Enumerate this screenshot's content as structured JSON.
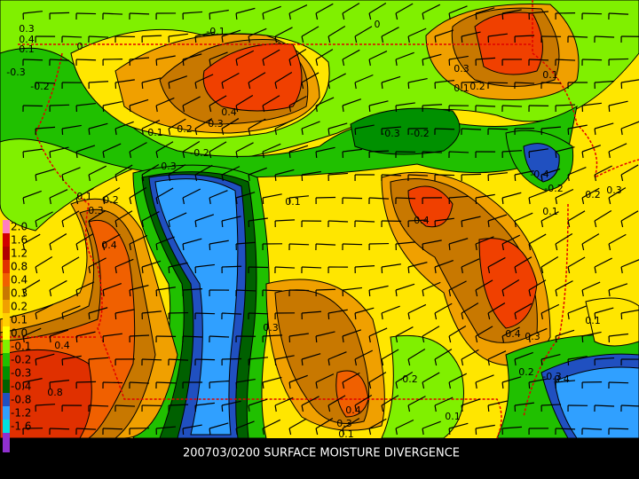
{
  "title": "200703/0200 SURFACE MOISTURE DIVERGENCE",
  "legend": {
    "items": [
      {
        "label": "2.0",
        "color": "#ff7fbf"
      },
      {
        "label": "1.6",
        "color": "#d00000"
      },
      {
        "label": "1.2",
        "color": "#b00000"
      },
      {
        "label": "0.8",
        "color": "#e03000"
      },
      {
        "label": "0.4",
        "color": "#f06000"
      },
      {
        "label": "0.3",
        "color": "#c87800"
      },
      {
        "label": "0.2",
        "color": "#f0a000"
      },
      {
        "label": "0.1",
        "color": "#ffd000"
      },
      {
        "label": "0.0",
        "color": "#ffff00"
      },
      {
        "label": "-0.1",
        "color": "#80f000"
      },
      {
        "label": "-0.2",
        "color": "#20c000"
      },
      {
        "label": "-0.3",
        "color": "#009000"
      },
      {
        "label": "-0.4",
        "color": "#006000"
      },
      {
        "label": "-0.8",
        "color": "#2050c0"
      },
      {
        "label": "-1.2",
        "color": "#30a0ff"
      },
      {
        "label": "-1.6",
        "color": "#00e0e0"
      }
    ]
  },
  "contour_labels": [
    "0.3",
    "0.4",
    "0.1",
    "0",
    "-0.1",
    "0",
    "-0.3",
    "-0.2",
    "0.4",
    "0.3",
    "0.2",
    "0.1",
    "0.3",
    "0.1",
    "0.2",
    "0.1",
    "-0.3",
    "-0.2",
    "0.3",
    "-0.2",
    "0.1",
    "0.2",
    "0.3",
    "0.4",
    "0.1",
    "0.4",
    "-0.4",
    "-0.2",
    "0.1",
    "0.2",
    "0.3",
    "0.1",
    "0.4",
    "0.3",
    "0.4",
    "0.3",
    "-0.2",
    "0.4",
    "0.1",
    "0.3",
    "0.1",
    "-0.3",
    "0.4",
    "0.2",
    "0.8"
  ]
}
